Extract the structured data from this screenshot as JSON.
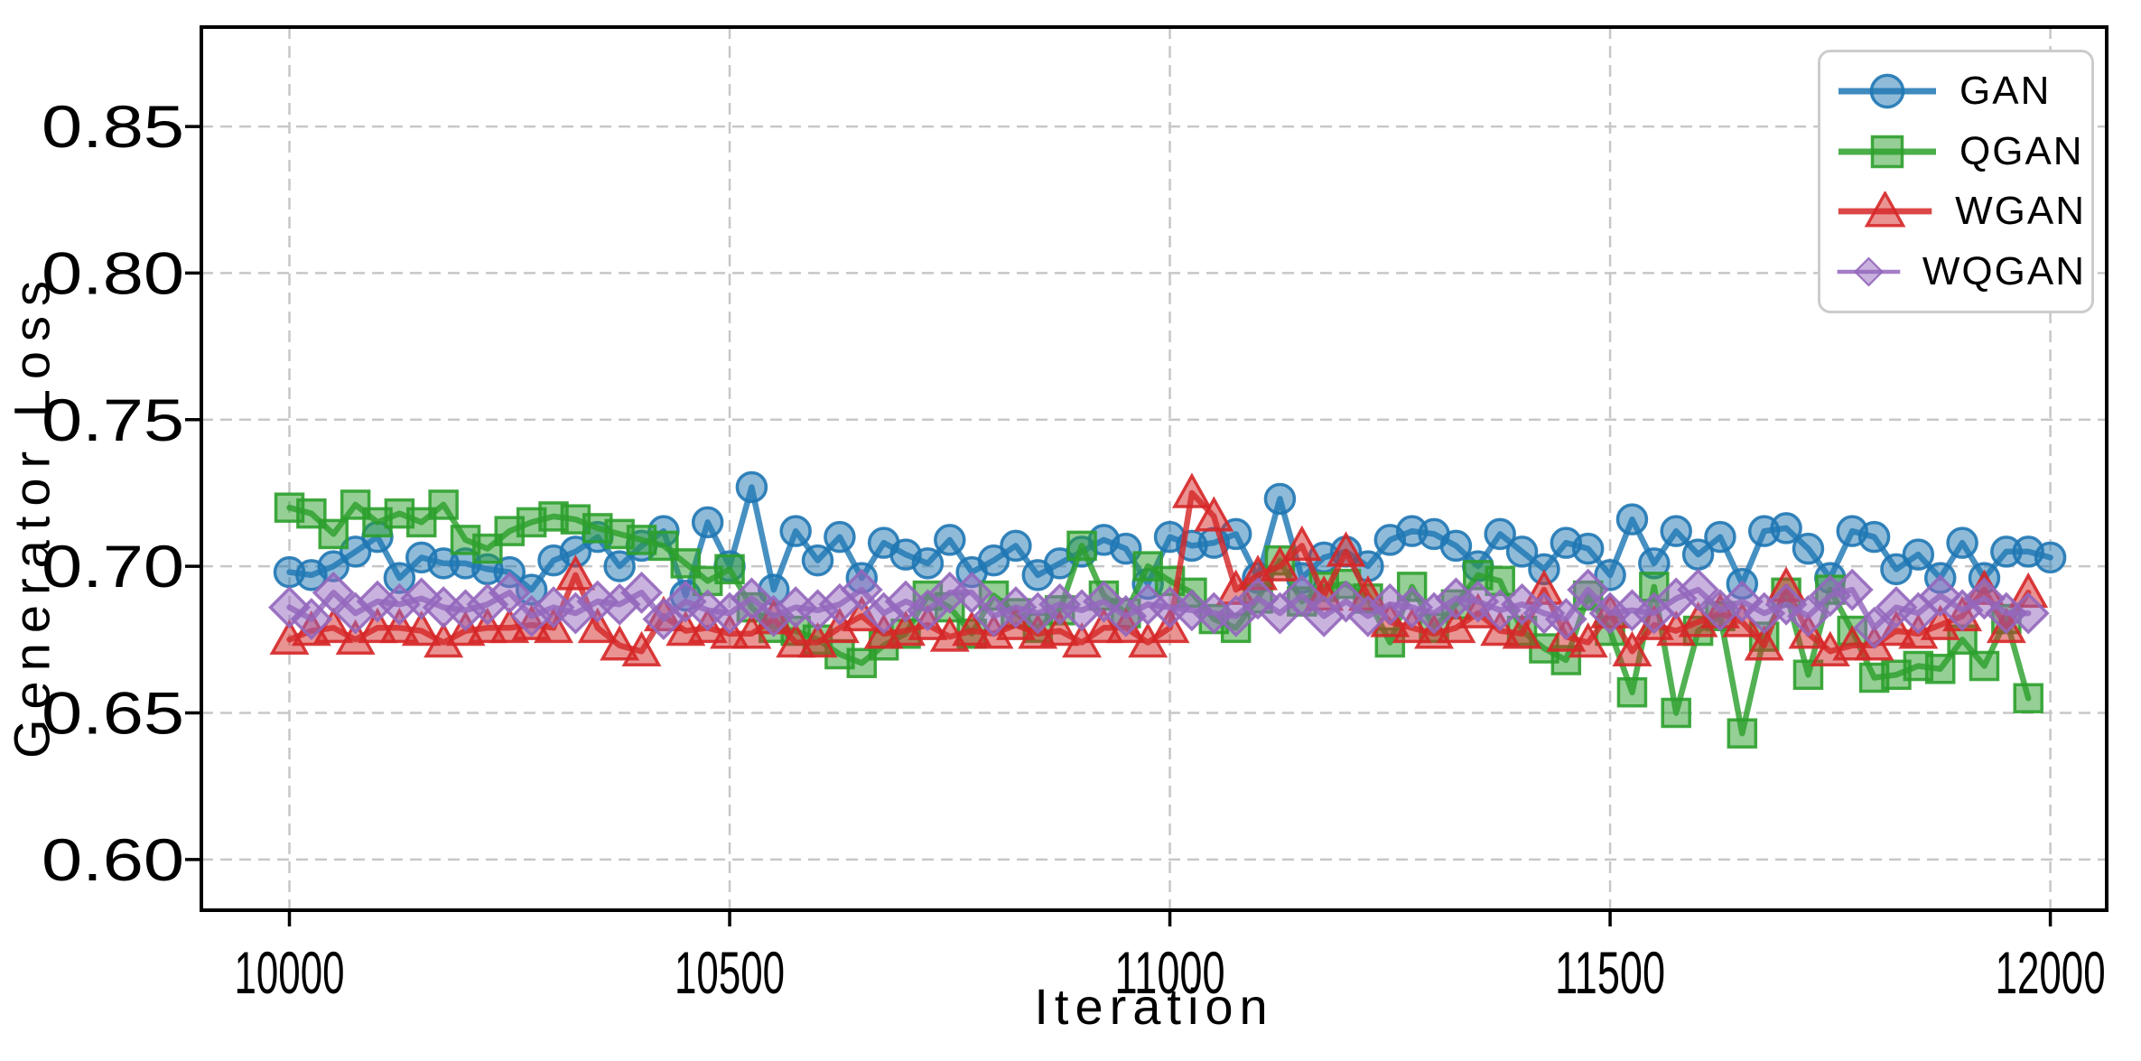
{
  "figure": {
    "background": "#ffffff"
  },
  "chart_data": {
    "type": "line",
    "title": "",
    "xlabel": "Iteration",
    "ylabel": "Generator Loss",
    "legend_position": "upper right",
    "grid": true,
    "grid_style": "dashed",
    "grid_color": "#c7c7c7",
    "spine_color": "#000000",
    "x_ticks": [
      10000,
      10500,
      11000,
      11500,
      12000
    ],
    "x_tick_labels": [
      "10000",
      "10500",
      "11000",
      "11500",
      "12000"
    ],
    "y_ticks": [
      0.6,
      0.65,
      0.7,
      0.75,
      0.8,
      0.85
    ],
    "y_tick_labels": [
      "0.60",
      "0.65",
      "0.70",
      "0.75",
      "0.80",
      "0.85"
    ],
    "xlim": [
      9900,
      12064
    ],
    "ylim": [
      0.5827,
      0.8839
    ],
    "x_start": 10000,
    "x_step": 25,
    "series": [
      {
        "name": "GAN",
        "color": "#1f77b4",
        "marker": "circle",
        "values": [
          0.698,
          0.697,
          0.7,
          0.705,
          0.71,
          0.696,
          0.703,
          0.701,
          0.701,
          0.699,
          0.698,
          0.692,
          0.702,
          0.705,
          0.71,
          0.7,
          0.707,
          0.712,
          0.69,
          0.715,
          0.7,
          0.727,
          0.692,
          0.712,
          0.702,
          0.71,
          0.696,
          0.708,
          0.704,
          0.701,
          0.709,
          0.698,
          0.702,
          0.707,
          0.697,
          0.701,
          0.705,
          0.709,
          0.706,
          0.694,
          0.71,
          0.707,
          0.708,
          0.711,
          0.696,
          0.723,
          0.696,
          0.703,
          0.705,
          0.7,
          0.709,
          0.712,
          0.711,
          0.707,
          0.7,
          0.711,
          0.705,
          0.699,
          0.708,
          0.706,
          0.697,
          0.716,
          0.701,
          0.712,
          0.704,
          0.71,
          0.694,
          0.712,
          0.713,
          0.706,
          0.696,
          0.712,
          0.71,
          0.699,
          0.704,
          0.696,
          0.708,
          0.696,
          0.705,
          0.705,
          0.703
        ]
      },
      {
        "name": "QGAN",
        "color": "#2ca02c",
        "marker": "square",
        "values": [
          0.72,
          0.718,
          0.711,
          0.721,
          0.715,
          0.718,
          0.715,
          0.721,
          0.709,
          0.706,
          0.712,
          0.715,
          0.717,
          0.716,
          0.713,
          0.711,
          0.709,
          0.707,
          0.701,
          0.695,
          0.699,
          0.686,
          0.679,
          0.678,
          0.675,
          0.67,
          0.667,
          0.673,
          0.677,
          0.69,
          0.686,
          0.677,
          0.69,
          0.684,
          0.679,
          0.685,
          0.707,
          0.69,
          0.684,
          0.7,
          0.695,
          0.691,
          0.682,
          0.679,
          0.689,
          0.702,
          0.688,
          0.693,
          0.694,
          0.689,
          0.674,
          0.693,
          0.679,
          0.687,
          0.697,
          0.695,
          0.678,
          0.672,
          0.668,
          0.69,
          0.678,
          0.657,
          0.693,
          0.65,
          0.678,
          0.683,
          0.643,
          0.676,
          0.691,
          0.663,
          0.692,
          0.678,
          0.662,
          0.663,
          0.666,
          0.665,
          0.675,
          0.666,
          0.682,
          0.655
        ]
      },
      {
        "name": "WGAN",
        "color": "#d62728",
        "marker": "triangle",
        "values": [
          0.675,
          0.678,
          0.679,
          0.675,
          0.679,
          0.679,
          0.678,
          0.674,
          0.678,
          0.679,
          0.679,
          0.68,
          0.679,
          0.697,
          0.679,
          0.673,
          0.671,
          0.683,
          0.678,
          0.679,
          0.677,
          0.677,
          0.682,
          0.674,
          0.674,
          0.679,
          0.683,
          0.677,
          0.678,
          0.68,
          0.676,
          0.678,
          0.677,
          0.68,
          0.677,
          0.678,
          0.674,
          0.679,
          0.679,
          0.674,
          0.679,
          0.725,
          0.717,
          0.692,
          0.697,
          0.7,
          0.707,
          0.69,
          0.705,
          0.69,
          0.681,
          0.679,
          0.677,
          0.679,
          0.684,
          0.678,
          0.677,
          0.692,
          0.676,
          0.674,
          0.684,
          0.671,
          0.68,
          0.678,
          0.681,
          0.684,
          0.681,
          0.673,
          0.693,
          0.677,
          0.671,
          0.673,
          0.673,
          0.678,
          0.677,
          0.68,
          0.683,
          0.692,
          0.679,
          0.691
        ]
      },
      {
        "name": "WQGAN",
        "color": "#9467bd",
        "marker": "diamond",
        "values": [
          0.686,
          0.682,
          0.691,
          0.684,
          0.688,
          0.687,
          0.689,
          0.686,
          0.685,
          0.687,
          0.691,
          0.683,
          0.686,
          0.684,
          0.688,
          0.687,
          0.691,
          0.682,
          0.688,
          0.685,
          0.684,
          0.689,
          0.683,
          0.686,
          0.685,
          0.687,
          0.692,
          0.684,
          0.688,
          0.685,
          0.691,
          0.691,
          0.683,
          0.686,
          0.684,
          0.687,
          0.685,
          0.688,
          0.683,
          0.687,
          0.686,
          0.685,
          0.684,
          0.683,
          0.689,
          0.684,
          0.69,
          0.683,
          0.688,
          0.683,
          0.687,
          0.686,
          0.684,
          0.689,
          0.688,
          0.685,
          0.687,
          0.684,
          0.682,
          0.692,
          0.684,
          0.685,
          0.684,
          0.689,
          0.692,
          0.685,
          0.688,
          0.684,
          0.687,
          0.683,
          0.69,
          0.692,
          0.679,
          0.686,
          0.684,
          0.69,
          0.685,
          0.689,
          0.684,
          0.684
        ]
      }
    ]
  }
}
